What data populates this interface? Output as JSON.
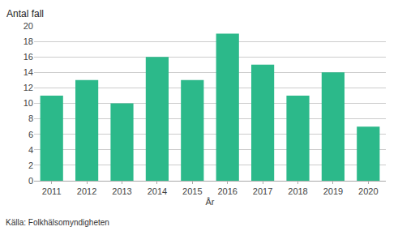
{
  "chart_data": {
    "type": "bar",
    "x": [
      2011,
      2012,
      2013,
      2014,
      2015,
      2016,
      2017,
      2018,
      2019,
      2020
    ],
    "values": [
      11,
      13,
      10,
      16,
      13,
      19,
      15,
      11,
      14,
      7
    ],
    "color": "#2cb98a",
    "xlabel": "År",
    "ylabel": "Antal fall",
    "annotations": [
      "Källa: Folkhälsomyndigheten"
    ],
    "xlim": [
      2010.5,
      2020.5
    ],
    "xticks": [
      2011,
      2012,
      2013,
      2014,
      2015,
      2016,
      2017,
      2018,
      2019,
      2020
    ],
    "ylim": [
      0,
      20
    ],
    "yticks": [
      0,
      2,
      4,
      6,
      8,
      10,
      12,
      14,
      16,
      18,
      20
    ],
    "grid": true
  }
}
